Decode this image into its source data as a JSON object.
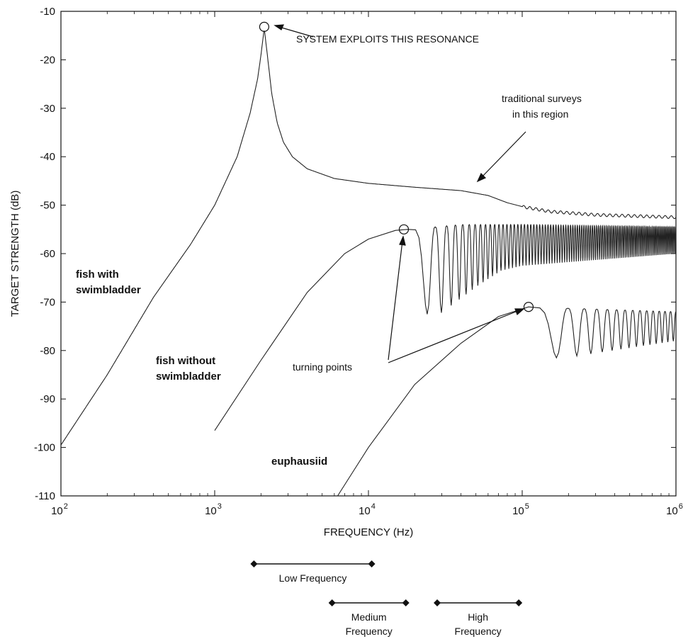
{
  "chart_data": {
    "type": "line",
    "xlabel": "FREQUENCY (Hz)",
    "ylabel": "TARGET STRENGTH (dB)",
    "xscale": "log",
    "xlim": [
      100,
      1000000
    ],
    "ylim": [
      -110,
      -10
    ],
    "xticks": [
      {
        "value": 100,
        "base": "10",
        "exp": "2"
      },
      {
        "value": 1000,
        "base": "10",
        "exp": "3"
      },
      {
        "value": 10000,
        "base": "10",
        "exp": "4"
      },
      {
        "value": 100000,
        "base": "10",
        "exp": "5"
      },
      {
        "value": 1000000,
        "base": "10",
        "exp": "6"
      }
    ],
    "yticks": [
      -10,
      -20,
      -30,
      -40,
      -50,
      -60,
      -70,
      -80,
      -90,
      -100,
      -110
    ],
    "grid": false,
    "legend": "none",
    "series": [
      {
        "points": [
          [
            100,
            -99.5
          ],
          [
            200,
            -85
          ],
          [
            400,
            -69
          ],
          [
            700,
            -58
          ],
          [
            1000,
            -50
          ],
          [
            1400,
            -40
          ],
          [
            1700,
            -31
          ],
          [
            1900,
            -24
          ],
          [
            2000,
            -19
          ],
          [
            2100,
            -13.5
          ],
          [
            2200,
            -19
          ],
          [
            2350,
            -27
          ],
          [
            2550,
            -33
          ],
          [
            2800,
            -37
          ],
          [
            3200,
            -40
          ],
          [
            4000,
            -42.5
          ],
          [
            6000,
            -44.5
          ],
          [
            10000,
            -45.5
          ],
          [
            20000,
            -46.3
          ],
          [
            40000,
            -47
          ],
          [
            60000,
            -48
          ],
          [
            80000,
            -49.5
          ],
          [
            100000,
            -50.3
          ],
          [
            150000,
            -51.3
          ],
          [
            300000,
            -52
          ],
          [
            1000000,
            -52.5
          ]
        ],
        "oscillation": {
          "start": 100000,
          "end": 1000000,
          "amplitude": 0.3,
          "count": 25
        }
      },
      {
        "points": [
          [
            1000,
            -96.5
          ],
          [
            2000,
            -82
          ],
          [
            4000,
            -68
          ],
          [
            7000,
            -60
          ],
          [
            10000,
            -57
          ],
          [
            15000,
            -55.2
          ],
          [
            18000,
            -55
          ]
        ],
        "peaks": [
          [
            18000,
            -55
          ],
          [
            40000,
            -54
          ],
          [
            60000,
            -54
          ],
          [
            80000,
            -54
          ],
          [
            100000,
            -54
          ],
          [
            1000000,
            -54.5
          ]
        ],
        "troughs": [
          [
            29000,
            -72.5
          ],
          [
            52000,
            -66.5
          ],
          [
            73000,
            -63.5
          ],
          [
            100000,
            -62.5
          ],
          [
            1000000,
            -60
          ]
        ],
        "lobes": 95
      },
      {
        "points": [
          [
            6300,
            -110
          ],
          [
            10000,
            -100
          ],
          [
            20000,
            -87
          ],
          [
            40000,
            -78.5
          ],
          [
            70000,
            -73
          ],
          [
            110000,
            -71
          ]
        ],
        "peaks": [
          [
            110000,
            -71
          ],
          [
            1000000,
            -72
          ]
        ],
        "troughs": [
          [
            190000,
            -81.5
          ],
          [
            1000000,
            -78
          ]
        ],
        "lobes": 14
      }
    ],
    "markers": [
      {
        "x": 2100,
        "y": -13.2
      },
      {
        "x": 17000,
        "y": -55
      },
      {
        "x": 110000,
        "y": -71
      }
    ],
    "annotations": {
      "resonance": "SYSTEM EXPLOITS THIS RESONANCE",
      "traditional_line1": "traditional surveys",
      "traditional_line2": "in this region",
      "fish_swim_line1": "fish with",
      "fish_swim_line2": "swimbladder",
      "fish_noswim_line1": "fish without",
      "fish_noswim_line2": "swimbladder",
      "turning_points": "turning points",
      "euphausiid": "euphausiid"
    },
    "frequency_bands": [
      {
        "label_lines": [
          "Low Frequency"
        ],
        "range": [
          1800,
          10500
        ]
      },
      {
        "label_lines": [
          "Medium",
          "Frequency"
        ],
        "range": [
          5800,
          17500
        ]
      },
      {
        "label_lines": [
          "High",
          "Frequency"
        ],
        "range": [
          28000,
          95000
        ]
      }
    ]
  }
}
